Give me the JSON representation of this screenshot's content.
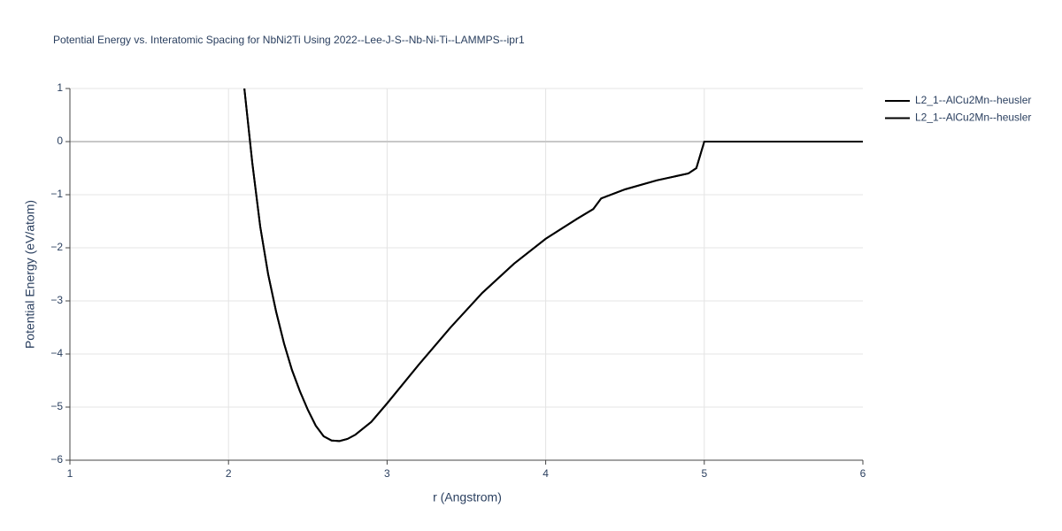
{
  "chart_data": {
    "type": "line",
    "title": "Potential Energy vs. Interatomic Spacing for NbNi2Ti Using 2022--Lee-J-S--Nb-Ni-Ti--LAMMPS--ipr1",
    "x_label": "r (Angstrom)",
    "y_label": "Potential Energy (eV/atom)",
    "x": [
      2.1,
      2.15,
      2.2,
      2.25,
      2.3,
      2.35,
      2.4,
      2.45,
      2.5,
      2.55,
      2.6,
      2.65,
      2.7,
      2.75,
      2.8,
      2.9,
      3.0,
      3.2,
      3.4,
      3.6,
      3.8,
      4.0,
      4.2,
      4.3,
      4.35,
      4.5,
      4.7,
      4.9,
      4.95,
      5.0,
      6.0
    ],
    "series": [
      {
        "name": "L2_1--AlCu2Mn--heusler",
        "color": "#000000",
        "values": [
          1.0,
          -0.4,
          -1.6,
          -2.5,
          -3.2,
          -3.8,
          -4.3,
          -4.7,
          -5.05,
          -5.35,
          -5.55,
          -5.63,
          -5.64,
          -5.6,
          -5.52,
          -5.28,
          -4.93,
          -4.2,
          -3.5,
          -2.85,
          -2.3,
          -1.83,
          -1.45,
          -1.27,
          -1.07,
          -0.9,
          -0.73,
          -0.6,
          -0.5,
          0,
          0
        ]
      },
      {
        "name": "L2_1--AlCu2Mn--heusler",
        "color": "#000000",
        "values": [
          1.0,
          -0.4,
          -1.6,
          -2.5,
          -3.2,
          -3.8,
          -4.3,
          -4.7,
          -5.05,
          -5.35,
          -5.55,
          -5.63,
          -5.64,
          -5.6,
          -5.52,
          -5.28,
          -4.93,
          -4.2,
          -3.5,
          -2.85,
          -2.3,
          -1.83,
          -1.45,
          -1.27,
          -1.07,
          -0.9,
          -0.73,
          -0.6,
          -0.5,
          0,
          0
        ]
      }
    ],
    "xlim": [
      1,
      6
    ],
    "xticks": [
      1,
      2,
      3,
      4,
      5,
      6
    ],
    "ylim": [
      -6,
      1
    ],
    "yticks": [
      1,
      0,
      {
        "value": -1,
        "label": "−1"
      },
      {
        "value": -2,
        "label": "−2"
      },
      {
        "value": -3,
        "label": "−3"
      },
      {
        "value": -4,
        "label": "−4"
      },
      {
        "value": -5,
        "label": "−5"
      },
      {
        "value": -6,
        "label": "−6"
      }
    ],
    "grid": true
  }
}
